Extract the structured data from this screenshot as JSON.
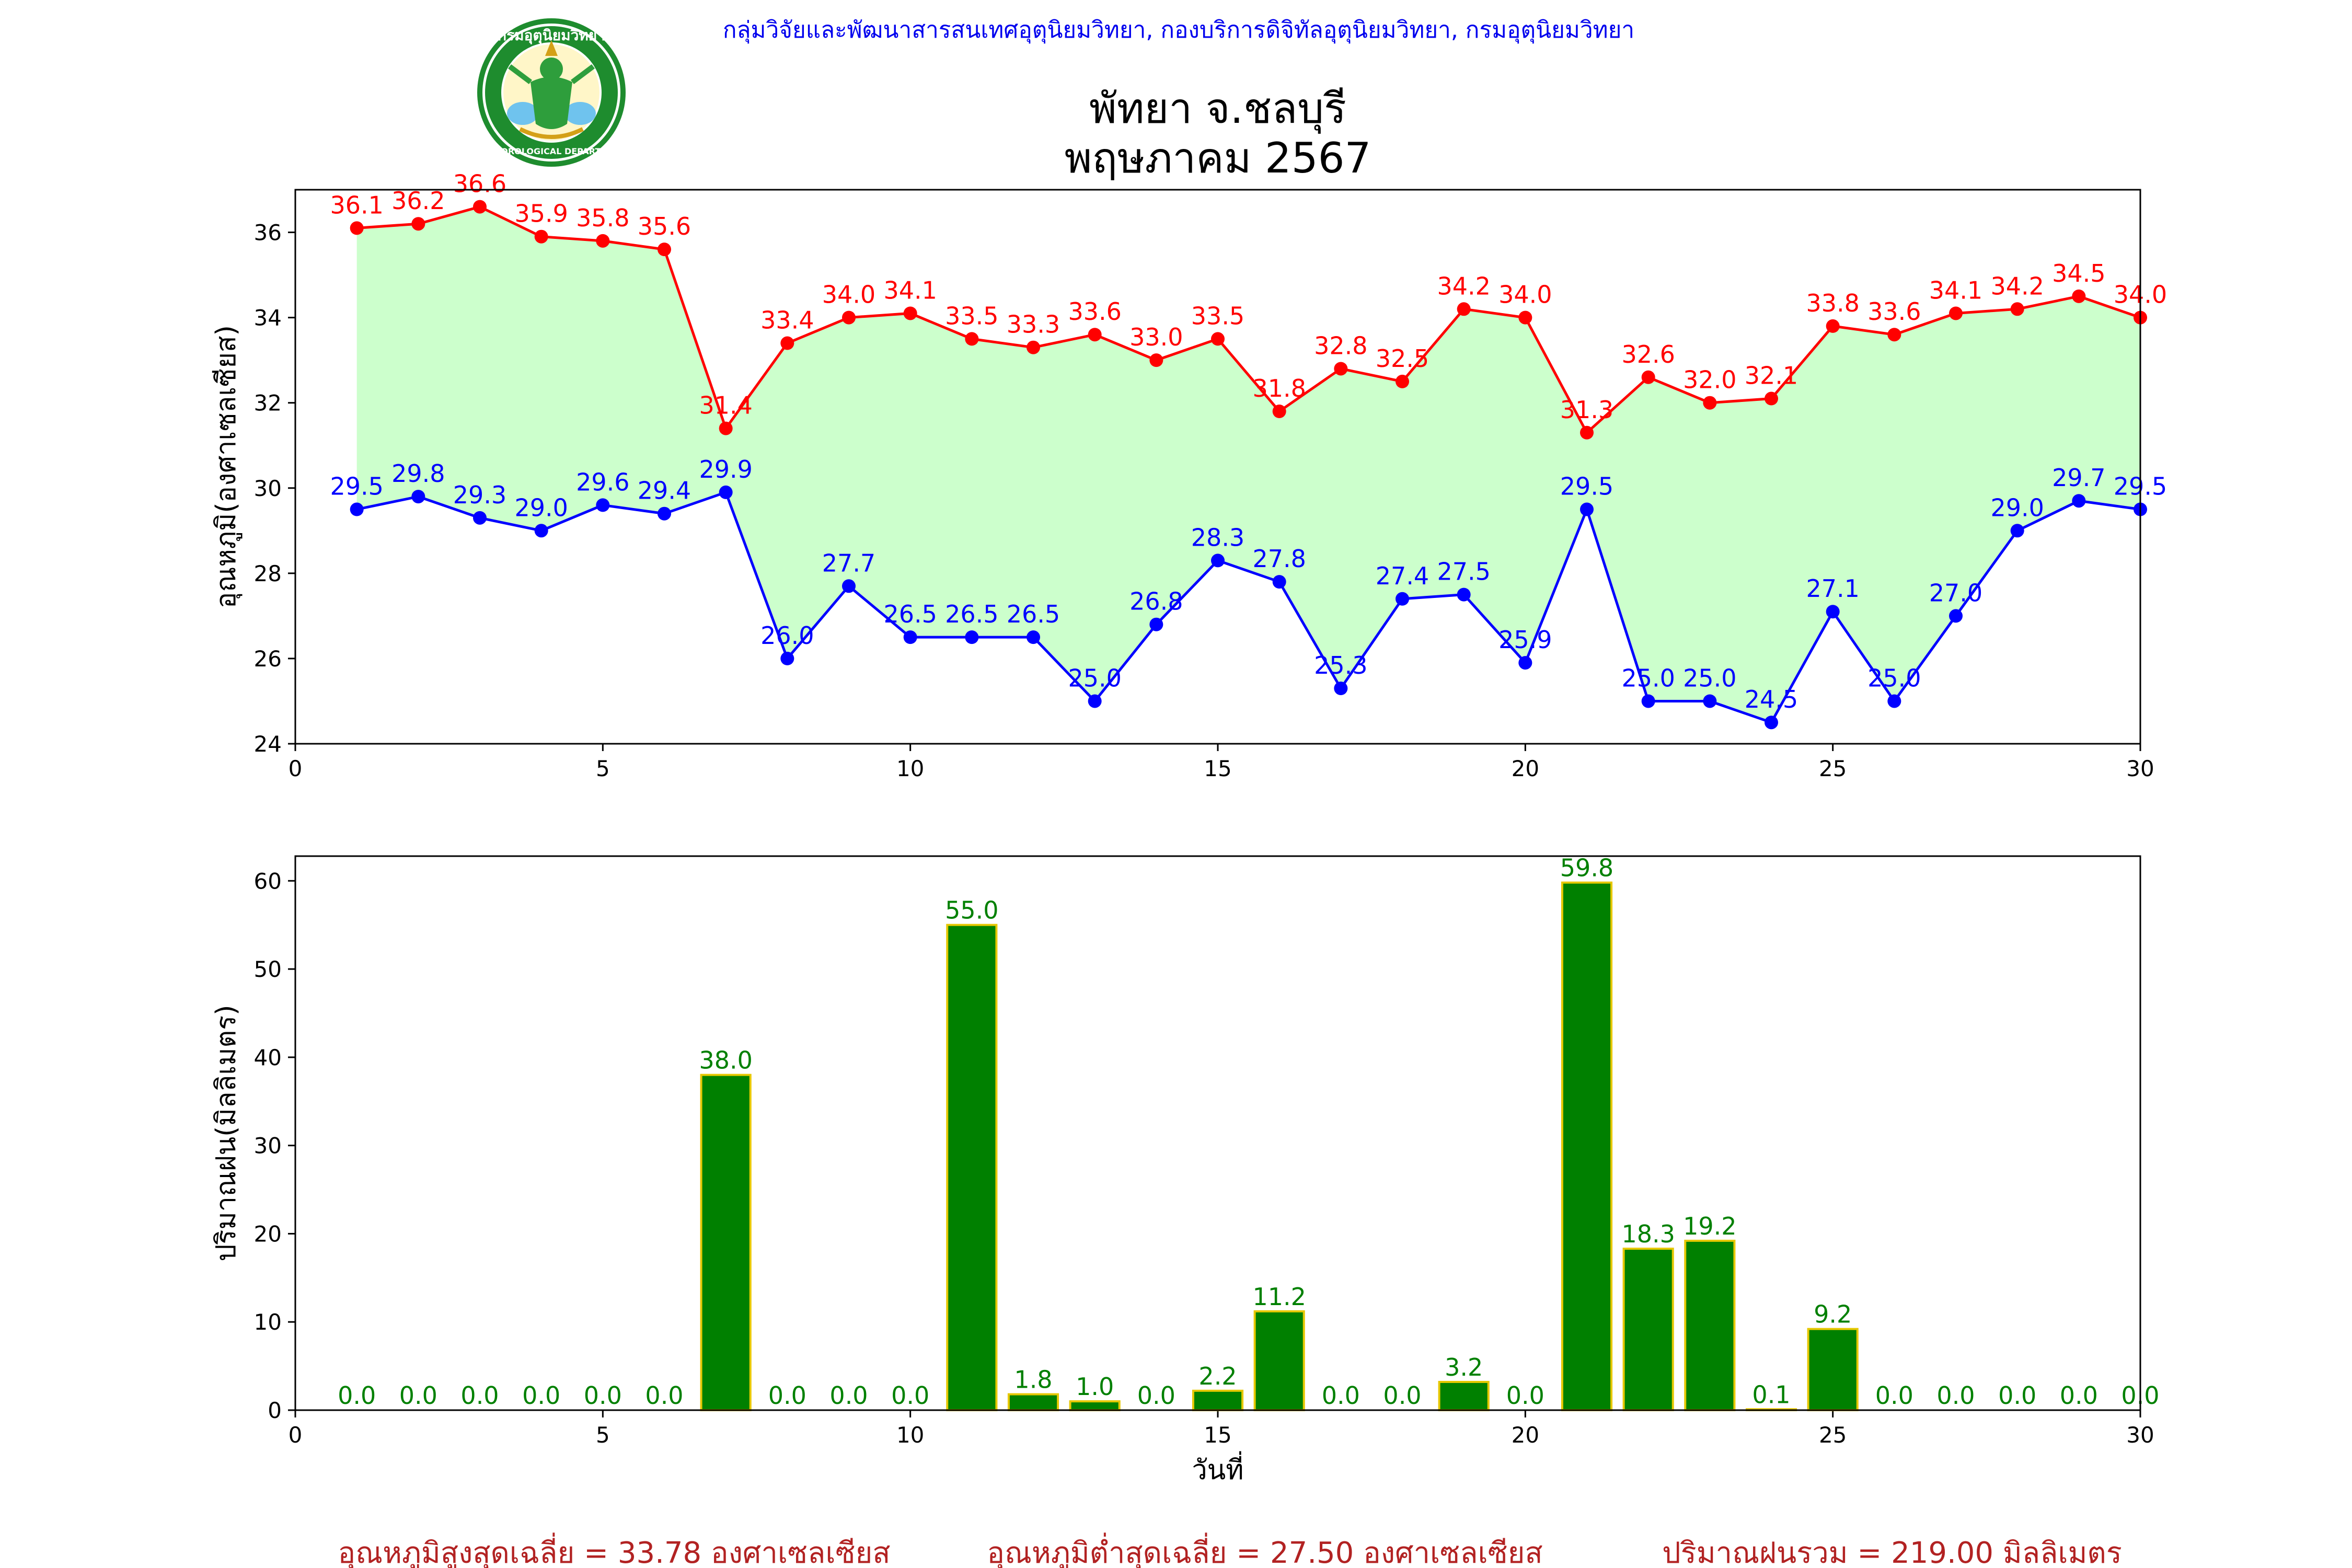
{
  "header": {
    "org_line": "กลุ่มวิจัยและพัฒนาสารสนเทศอุตุนิยมวิทยา, กองบริการดิจิทัลอุตุนิยมวิทยา, กรมอุตุนิยมวิทยา",
    "logo_top_text": "กรมอุตุนิยมวิทยา",
    "logo_bottom_text": "METEOROLOGICAL DEPARTMENT"
  },
  "chart_data": [
    {
      "type": "line",
      "title": "พัทยา จ.ชลบุรี",
      "subtitle": "พฤษภาคม 2567",
      "xlabel": "",
      "ylabel": "อุณหภูมิ(องศาเซลเซียส)",
      "xlim": [
        0,
        30
      ],
      "ylim": [
        24,
        37
      ],
      "xticks": [
        0,
        5,
        10,
        15,
        20,
        25,
        30
      ],
      "yticks": [
        24,
        26,
        28,
        30,
        32,
        34,
        36
      ],
      "fill_between": true,
      "x": [
        1,
        2,
        3,
        4,
        5,
        6,
        7,
        8,
        9,
        10,
        11,
        12,
        13,
        14,
        15,
        16,
        17,
        18,
        19,
        20,
        21,
        22,
        23,
        24,
        25,
        26,
        27,
        28,
        29,
        30
      ],
      "series": [
        {
          "color": "#ff0000",
          "values": [
            36.1,
            36.2,
            36.6,
            35.9,
            35.8,
            35.6,
            31.4,
            33.4,
            34.0,
            34.1,
            33.5,
            33.3,
            33.6,
            33.0,
            33.5,
            31.8,
            32.8,
            32.5,
            34.2,
            34.0,
            31.3,
            32.6,
            32.0,
            32.1,
            33.8,
            33.6,
            34.1,
            34.2,
            34.5,
            34.0
          ]
        },
        {
          "color": "#0000ff",
          "values": [
            29.5,
            29.8,
            29.3,
            29.0,
            29.6,
            29.4,
            29.9,
            26.0,
            27.7,
            26.5,
            26.5,
            26.5,
            25.0,
            26.8,
            28.3,
            27.8,
            25.3,
            27.4,
            27.5,
            25.9,
            29.5,
            25.0,
            25.0,
            24.5,
            27.1,
            25.0,
            27.0,
            29.0,
            29.7,
            29.5
          ]
        }
      ],
      "fill_color": "#ccffcc"
    },
    {
      "type": "bar",
      "xlabel": "วันที่",
      "ylabel": "ปริมาณฝน(มิลลิเมตร)",
      "xlim": [
        0,
        30
      ],
      "ylim": [
        0,
        62.8
      ],
      "xticks": [
        0,
        5,
        10,
        15,
        20,
        25,
        30
      ],
      "yticks": [
        0,
        10,
        20,
        30,
        40,
        50,
        60
      ],
      "bar_color": "#008000",
      "edge_color": "#e6c800",
      "label_color": "#008000",
      "x": [
        1,
        2,
        3,
        4,
        5,
        6,
        7,
        8,
        9,
        10,
        11,
        12,
        13,
        14,
        15,
        16,
        17,
        18,
        19,
        20,
        21,
        22,
        23,
        24,
        25,
        26,
        27,
        28,
        29,
        30
      ],
      "values": [
        0.0,
        0.0,
        0.0,
        0.0,
        0.0,
        0.0,
        38.0,
        0.0,
        0.0,
        0.0,
        55.0,
        1.8,
        1.0,
        0.0,
        2.2,
        11.2,
        0.0,
        0.0,
        3.2,
        0.0,
        59.8,
        18.3,
        19.2,
        0.1,
        9.2,
        0.0,
        0.0,
        0.0,
        0.0,
        0.0
      ]
    }
  ],
  "footer": {
    "color": "#b22222",
    "items": [
      "อุณหภูมิสูงสุดเฉลี่ย = 33.78 องศาเซลเซียส",
      "อุณหภูมิต่ำสุดเฉลี่ย = 27.50 องศาเซลเซียส",
      "ปริมาณฝนรวม = 219.00 มิลลิเมตร"
    ]
  }
}
